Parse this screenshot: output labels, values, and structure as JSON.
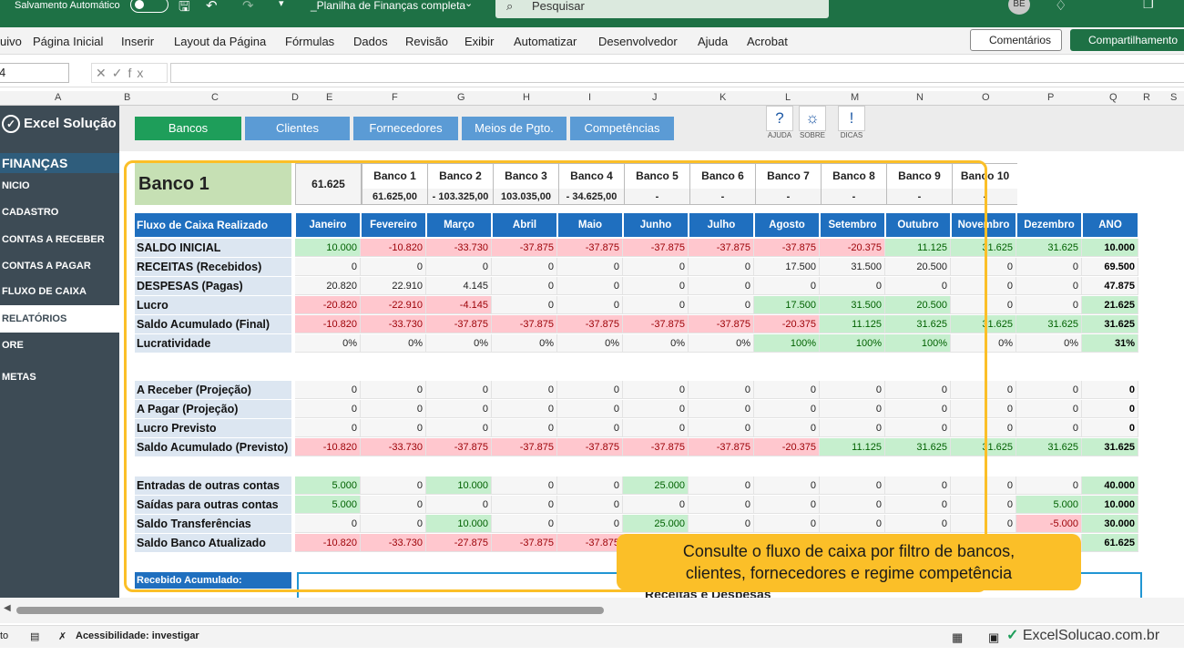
{
  "titlebar": {
    "autosave": "Salvamento Automático",
    "filename": "_Planilha de Finanças completa",
    "search_placeholder": "Pesquisar",
    "avatar": "BE"
  },
  "ribbon": {
    "tabs": [
      "uivo",
      "Página Inicial",
      "Inserir",
      "Layout da Página",
      "Fórmulas",
      "Dados",
      "Revisão",
      "Exibir",
      "Automatizar",
      "Desenvolvedor",
      "Ajuda",
      "Acrobat"
    ],
    "comments": "Comentários",
    "share": "Compartilhamento"
  },
  "formula_bar": {
    "namebox": "4",
    "fx": "fx"
  },
  "columns": [
    "A",
    "B",
    "C",
    "D",
    "E",
    "F",
    "G",
    "H",
    "I",
    "J",
    "K",
    "L",
    "M",
    "N",
    "O",
    "P",
    "Q",
    "R",
    "S"
  ],
  "sidebar": {
    "logo": "Excel Solução",
    "title": "FINANÇAS",
    "items": [
      "NICIO",
      "CADASTRO",
      "CONTAS A RECEBER",
      "CONTAS A PAGAR",
      "FLUXO DE CAIXA",
      "RELATÓRIOS",
      "ORE",
      "METAS"
    ]
  },
  "nav": {
    "buttons": [
      "Bancos",
      "Clientes",
      "Fornecedores",
      "Meios de Pgto.",
      "Competências"
    ],
    "icons": [
      "AJUDA",
      "SOBRE",
      "DICAS"
    ]
  },
  "bank": {
    "title": "Banco 1",
    "total": "61.625",
    "names": [
      "Banco 1",
      "Banco 2",
      "Banco 3",
      "Banco 4",
      "Banco 5",
      "Banco 6",
      "Banco 7",
      "Banco 8",
      "Banco 9",
      "Banco 10"
    ],
    "values": [
      "61.625,00",
      "- 103.325,00",
      "103.035,00",
      "-   34.625,00",
      "-",
      "-",
      "-",
      "-",
      "-",
      "-"
    ]
  },
  "table": {
    "header_label": "Fluxo de Caixa Realizado",
    "months": [
      "Janeiro",
      "Fevereiro",
      "Março",
      "Abril",
      "Maio",
      "Junho",
      "Julho",
      "Agosto",
      "Setembro",
      "Outubro",
      "Novembro",
      "Dezembro",
      "ANO"
    ],
    "rows": [
      {
        "label": "SALDO INICIAL",
        "vals": [
          "10.000",
          "-10.820",
          "-33.730",
          "-37.875",
          "-37.875",
          "-37.875",
          "-37.875",
          "-37.875",
          "-20.375",
          "11.125",
          "31.625",
          "31.625",
          "10.000"
        ]
      },
      {
        "label": "RECEITAS (Recebidos)",
        "vals": [
          "0",
          "0",
          "0",
          "0",
          "0",
          "0",
          "0",
          "17.500",
          "31.500",
          "20.500",
          "0",
          "0",
          "69.500"
        ]
      },
      {
        "label": "DESPESAS (Pagas)",
        "vals": [
          "20.820",
          "22.910",
          "4.145",
          "0",
          "0",
          "0",
          "0",
          "0",
          "0",
          "0",
          "0",
          "0",
          "47.875"
        ]
      },
      {
        "label": "Lucro",
        "vals": [
          "-20.820",
          "-22.910",
          "-4.145",
          "0",
          "0",
          "0",
          "0",
          "17.500",
          "31.500",
          "20.500",
          "0",
          "0",
          "21.625"
        ]
      },
      {
        "label": "Saldo Acumulado (Final)",
        "vals": [
          "-10.820",
          "-33.730",
          "-37.875",
          "-37.875",
          "-37.875",
          "-37.875",
          "-37.875",
          "-20.375",
          "11.125",
          "31.625",
          "31.625",
          "31.625",
          "31.625"
        ]
      },
      {
        "label": "Lucratividade",
        "vals": [
          "0%",
          "0%",
          "0%",
          "0%",
          "0%",
          "0%",
          "0%",
          "100%",
          "100%",
          "100%",
          "0%",
          "0%",
          "31%"
        ]
      },
      {
        "label": "A Receber (Projeção)",
        "vals": [
          "0",
          "0",
          "0",
          "0",
          "0",
          "0",
          "0",
          "0",
          "0",
          "0",
          "0",
          "0",
          "0"
        ]
      },
      {
        "label": "A Pagar (Projeção)",
        "vals": [
          "0",
          "0",
          "0",
          "0",
          "0",
          "0",
          "0",
          "0",
          "0",
          "0",
          "0",
          "0",
          "0"
        ]
      },
      {
        "label": "Lucro Previsto",
        "vals": [
          "0",
          "0",
          "0",
          "0",
          "0",
          "0",
          "0",
          "0",
          "0",
          "0",
          "0",
          "0",
          "0"
        ]
      },
      {
        "label": "Saldo Acumulado (Previsto)",
        "vals": [
          "-10.820",
          "-33.730",
          "-37.875",
          "-37.875",
          "-37.875",
          "-37.875",
          "-37.875",
          "-20.375",
          "11.125",
          "31.625",
          "31.625",
          "31.625",
          "31.625"
        ]
      },
      {
        "label": "Entradas de outras contas",
        "vals": [
          "5.000",
          "0",
          "10.000",
          "0",
          "0",
          "25.000",
          "0",
          "0",
          "0",
          "0",
          "0",
          "0",
          "40.000"
        ]
      },
      {
        "label": "Saídas para outras contas",
        "vals": [
          "5.000",
          "0",
          "0",
          "0",
          "0",
          "0",
          "0",
          "0",
          "0",
          "0",
          "0",
          "5.000",
          "10.000"
        ]
      },
      {
        "label": "Saldo Transferências",
        "vals": [
          "0",
          "0",
          "10.000",
          "0",
          "0",
          "25.000",
          "0",
          "0",
          "0",
          "0",
          "0",
          "-5.000",
          "30.000"
        ]
      },
      {
        "label": "Saldo Banco Atualizado",
        "vals": [
          "-10.820",
          "-33.730",
          "-27.875",
          "-37.875",
          "-37.875",
          "",
          "",
          "",
          "",
          "",
          "",
          "",
          "61.625"
        ]
      }
    ],
    "recebido": "Recebido Acumulado:",
    "chart_title": "Receitas e Despesas"
  },
  "callout": {
    "line1": "Consulte o fluxo de caixa por filtro de bancos,",
    "line2": "clientes, fornecedores e regime competência"
  },
  "status": {
    "left": "to",
    "accessibility": "Acessibilidade: investigar"
  },
  "watermark": "ExcelSolucao.com.br",
  "colors": {
    "excel_green": "#1e7145",
    "nav_green": "#1e9e5a",
    "nav_blue": "#5b9bd5",
    "header_blue": "#1f6fbf",
    "pos_bg": "#c6efce",
    "neg_bg": "#ffc7ce",
    "callout": "#fbbf28"
  }
}
